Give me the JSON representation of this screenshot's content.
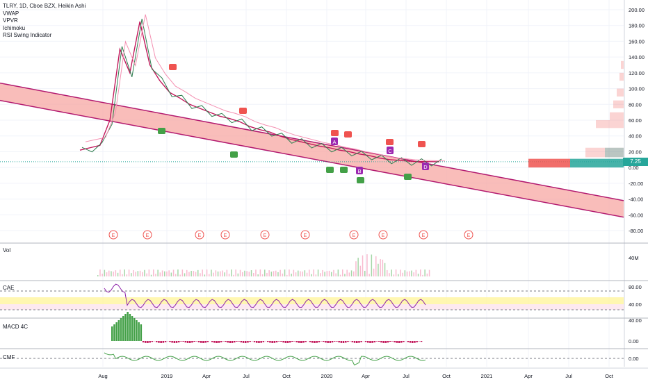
{
  "header": {
    "title": "TLRY, 1D, Cboe BZX, Heikin Ashi",
    "indicators": [
      "VWAP",
      "VPVR",
      "Ichimoku",
      "RSI Swing Indicator"
    ]
  },
  "panes": {
    "volume_label": "Vol",
    "cae_label": "CAE",
    "macd_label": "MACD 4C",
    "cmf_label": "CMF"
  },
  "last_price": "7.25",
  "colors": {
    "channel_fill": "#f7a7a3",
    "channel_line": "#b2196f",
    "bull_candle": "#2e7d4f",
    "bear_candle": "#c2185b",
    "up_marker": "#43a047",
    "down_marker": "#ef5350",
    "label_marker": "#9c27b0",
    "vpvr_up": "#26a69a",
    "vpvr_down": "#ef5350",
    "earnings": "#ef5350"
  },
  "chart_data": [
    {
      "type": "line",
      "pane": "price",
      "title": "TLRY, 1D, Cboe BZX, Heikin Ashi",
      "x_tick_labels": [
        "Aug",
        "2019",
        "Apr",
        "Jul",
        "Oct",
        "2020",
        "Apr",
        "Jul",
        "Oct",
        "2021",
        "Apr",
        "Jul",
        "Oct"
      ],
      "y_tick_labels": [
        "200.00",
        "180.00",
        "160.00",
        "140.00",
        "120.00",
        "100.00",
        "80.00",
        "60.00",
        "40.00",
        "20.00",
        "0.00",
        "-20.00",
        "-40.00",
        "-60.00",
        "-80.00"
      ],
      "ylim": [
        -88,
        205
      ],
      "last_value": 7.25,
      "series": [
        {
          "values": [
            22,
            25,
            28,
            60,
            150,
            120,
            185,
            130,
            110,
            95,
            88,
            80,
            75,
            70,
            65,
            62,
            58,
            52,
            48,
            45,
            40,
            36,
            33,
            30,
            27,
            25,
            22,
            20,
            17,
            15,
            12,
            10,
            9,
            8,
            7.5,
            7.3,
            7.25
          ]
        }
      ],
      "trend_channel": {
        "upper_start": 107,
        "upper_end": -42,
        "lower_start": 85,
        "lower_end": -63
      },
      "swing_labels": [
        "A",
        "B",
        "C",
        "D"
      ],
      "earnings_marker": "E",
      "earnings_count": 9
    },
    {
      "type": "bar",
      "pane": "volume",
      "title": "Vol",
      "y_tick_labels": [
        "40M"
      ]
    },
    {
      "type": "line",
      "pane": "cae",
      "title": "CAE",
      "y_tick_labels": [
        "80.00",
        "40.00"
      ],
      "ylim": [
        20,
        90
      ]
    },
    {
      "type": "bar",
      "pane": "macd",
      "title": "MACD 4C",
      "y_tick_labels": [
        "40.00",
        "0.00"
      ]
    },
    {
      "type": "line",
      "pane": "cmf",
      "title": "CMF",
      "y_tick_labels": [
        "0.00"
      ]
    }
  ]
}
